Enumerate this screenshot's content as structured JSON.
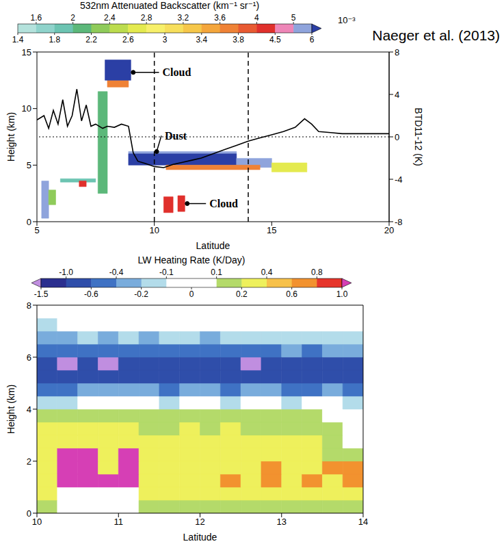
{
  "chart_data": [
    {
      "type": "heatmap",
      "subtitle": "Naeger et al. (2013)",
      "xlabel": "Latitude",
      "ylabel": "Height (km)",
      "y2label": "BTD11-12 (K)",
      "xlim": [
        5,
        20
      ],
      "xticks": [
        5,
        10,
        15,
        20
      ],
      "ylim": [
        0,
        15
      ],
      "yticks": [
        0,
        5,
        10,
        15
      ],
      "y2lim": [
        -8,
        8
      ],
      "y2ticks": [
        -8,
        -4,
        0,
        4,
        8
      ],
      "colorbar": {
        "title": "532nm Attenuated Backscatter (km⁻¹ sr⁻¹)",
        "scale_label": "10⁻³",
        "range": [
          1.4,
          6
        ],
        "ticks": [
          1.4,
          1.6,
          1.8,
          2,
          2.2,
          2.4,
          2.6,
          2.8,
          3,
          3.2,
          3.4,
          3.6,
          3.8,
          4,
          4.5,
          5,
          6
        ]
      },
      "cells": [
        {
          "x": [
            5.2,
            5.5
          ],
          "y": [
            0.3,
            3.6
          ],
          "value": 5.5
        },
        {
          "x": [
            5.5,
            5.8
          ],
          "y": [
            1.5,
            2.8
          ],
          "value": 2.2
        },
        {
          "x": [
            6.0,
            7.5
          ],
          "y": [
            3.5,
            3.8
          ],
          "value": 1.9
        },
        {
          "x": [
            6.8,
            7.1
          ],
          "y": [
            3.1,
            3.6
          ],
          "value": 4.2
        },
        {
          "x": [
            7.6,
            8.0
          ],
          "y": [
            2.5,
            11.5
          ],
          "value": 2.0
        },
        {
          "x": [
            8.0,
            8.9
          ],
          "y": [
            11.9,
            12.5
          ],
          "value": 3.6
        },
        {
          "x": [
            7.9,
            9.0
          ],
          "y": [
            12.5,
            14.3
          ],
          "value": 6.5
        },
        {
          "x": [
            8.9,
            13.5
          ],
          "y": [
            6.0,
            6.2
          ],
          "value": 5.5
        },
        {
          "x": [
            8.9,
            13.5
          ],
          "y": [
            5.0,
            6.0
          ],
          "value": 6.5
        },
        {
          "x": [
            13.5,
            15.0
          ],
          "y": [
            4.8,
            5.6
          ],
          "value": 5.5
        },
        {
          "x": [
            15.0,
            16.5
          ],
          "y": [
            4.4,
            5.2
          ],
          "value": 2.6
        },
        {
          "x": [
            10.5,
            14.5
          ],
          "y": [
            4.6,
            5.0
          ],
          "value": 3.7
        },
        {
          "x": [
            10.4,
            10.8
          ],
          "y": [
            0.8,
            2.2
          ],
          "value": 4.2
        },
        {
          "x": [
            11.0,
            11.3
          ],
          "y": [
            0.9,
            2.3
          ],
          "value": 4.2
        }
      ],
      "series": [
        {
          "type": "line",
          "axis": "y2",
          "color": "#000000",
          "x": [
            5.0,
            5.3,
            5.5,
            5.7,
            5.9,
            6.1,
            6.3,
            6.5,
            6.7,
            6.9,
            7.1,
            7.3,
            7.5,
            7.8,
            8.0,
            8.3,
            8.6,
            8.9,
            9.1,
            9.3,
            9.6,
            10.0,
            10.4,
            10.8,
            11.2,
            11.6,
            12.0,
            12.5,
            13.0,
            13.5,
            14.0,
            14.5,
            15.0,
            15.5,
            16.0,
            16.4,
            16.7,
            17.0,
            17.5,
            18.0,
            19.0,
            20.0
          ],
          "values": [
            1.6,
            2.0,
            0.8,
            2.5,
            1.2,
            3.5,
            1.0,
            2.0,
            4.5,
            1.5,
            3.0,
            1.0,
            1.2,
            0.8,
            1.0,
            0.9,
            1.2,
            1.0,
            -1.5,
            -2.3,
            -2.5,
            -2.8,
            -2.9,
            -2.6,
            -2.4,
            -2.2,
            -2.0,
            -1.6,
            -1.2,
            -0.8,
            -0.4,
            -0.1,
            0.2,
            0.5,
            0.9,
            1.7,
            1.2,
            0.5,
            0.4,
            0.3,
            0.3,
            0.3
          ]
        }
      ],
      "reference_x": [
        10,
        14
      ],
      "reference_y2": [
        0
      ],
      "annotations": [
        {
          "text": "Cloud",
          "x": 10.2,
          "y": 13.2,
          "arrow_to": [
            9.1,
            13.2
          ]
        },
        {
          "text": "Dust",
          "x": 10.3,
          "y": 7.6,
          "arrow_to": [
            10.1,
            6.2
          ]
        },
        {
          "text": "Cloud",
          "x": 12.2,
          "y": 1.6,
          "arrow_to": [
            11.4,
            1.6
          ]
        }
      ]
    },
    {
      "type": "heatmap",
      "xlabel": "Latitude",
      "ylabel": "Height (km)",
      "xlim": [
        10,
        14
      ],
      "xticks": [
        10,
        11,
        12,
        13,
        14
      ],
      "ylim": [
        0,
        8
      ],
      "yticks": [
        0,
        2,
        4,
        6,
        8
      ],
      "colorbar": {
        "title": "LW Heating Rate (K/Day)",
        "range": [
          -1.5,
          1
        ],
        "ticks": [
          -1.5,
          {
            "value": -1,
            "label": "-1.0"
          },
          -0.6,
          -0.4,
          -0.2,
          -0.1,
          0,
          0.1,
          0.2,
          0.4,
          0.6,
          0.8,
          {
            "value": 1,
            "label": "1.0"
          }
        ]
      },
      "cells": {
        "x_edges": [
          10,
          10.25,
          10.5,
          10.75,
          11,
          11.25,
          11.5,
          11.75,
          12,
          12.25,
          12.5,
          12.75,
          13,
          13.25,
          13.5,
          13.75,
          14
        ],
        "y_edges": [
          0,
          0.5,
          1,
          1.5,
          2,
          2.5,
          3,
          3.5,
          4,
          4.5,
          5,
          5.5,
          6,
          6.5,
          7,
          7.5,
          8
        ],
        "z": [
          [
            0.15,
            0.05,
            0.05,
            0.05,
            0.05,
            0.15,
            0.15,
            0.15,
            0.15,
            0.15,
            0.15,
            0.15,
            0.15,
            0.15,
            0.15,
            0.15
          ],
          [
            0.3,
            0.05,
            0.05,
            0.05,
            0.05,
            0.3,
            0.3,
            0.3,
            0.3,
            0.3,
            0.3,
            0.3,
            0.3,
            0.3,
            0.3,
            0.3
          ],
          [
            0.3,
            1.2,
            1.2,
            1.2,
            1.2,
            0.3,
            0.3,
            0.3,
            0.3,
            0.65,
            0.3,
            0.65,
            0.3,
            0.65,
            0.3,
            0.65
          ],
          [
            0.3,
            1.2,
            1.2,
            0.3,
            1.2,
            0.3,
            0.3,
            0.3,
            0.3,
            0.3,
            0.3,
            0.65,
            0.3,
            0.3,
            0.65,
            0.65
          ],
          [
            0.3,
            1.2,
            1.2,
            0.3,
            1.2,
            0.3,
            0.3,
            0.3,
            0.3,
            0.3,
            0.3,
            0.3,
            0.3,
            0.3,
            0.15,
            0.15
          ],
          [
            0.3,
            0.3,
            0.3,
            0.3,
            0.3,
            0.3,
            0.3,
            0.3,
            0.25,
            0.3,
            0.25,
            0.3,
            0.25,
            0.25,
            0.15,
            0.05
          ],
          [
            0.25,
            0.25,
            0.3,
            0.25,
            0.25,
            0.15,
            0.15,
            0.25,
            0.15,
            0.25,
            0.15,
            0.15,
            0.15,
            0.15,
            0.15,
            0.05
          ],
          [
            0.15,
            0.15,
            0.15,
            0.15,
            0.15,
            0.15,
            0.15,
            0.15,
            0.15,
            0.15,
            0.15,
            0.15,
            0.15,
            0.15,
            0.05,
            0.05
          ],
          [
            -0.15,
            -0.15,
            -0.05,
            -0.05,
            -0.05,
            -0.05,
            -0.15,
            -0.05,
            -0.05,
            -0.15,
            -0.05,
            -0.05,
            -0.15,
            -0.05,
            -0.05,
            -0.15
          ],
          [
            -0.5,
            -0.5,
            -0.3,
            -0.3,
            -0.3,
            -0.3,
            -0.5,
            -0.3,
            -0.3,
            -0.5,
            -0.3,
            -0.3,
            -0.5,
            -0.5,
            -0.3,
            -0.5
          ],
          [
            -0.8,
            -0.8,
            -0.8,
            -0.8,
            -0.7,
            -0.7,
            -0.8,
            -0.8,
            -0.7,
            -0.8,
            -0.7,
            -0.8,
            -0.8,
            -0.8,
            -0.7,
            -0.8
          ],
          [
            -0.8,
            -1.6,
            -0.8,
            -1.6,
            -0.8,
            -0.8,
            -0.8,
            -0.8,
            -0.8,
            -0.8,
            -1.6,
            -0.8,
            -0.8,
            -0.8,
            -0.8,
            -0.8
          ],
          [
            -0.5,
            -0.5,
            -0.5,
            -0.5,
            -0.5,
            -0.5,
            -0.5,
            -0.5,
            -0.5,
            -0.5,
            -0.5,
            -0.5,
            -0.3,
            -0.5,
            -0.3,
            -0.3
          ],
          [
            -0.3,
            -0.3,
            -0.15,
            -0.3,
            -0.15,
            -0.3,
            -0.15,
            -0.15,
            -0.3,
            -0.15,
            -0.15,
            -0.15,
            -0.15,
            -0.15,
            -0.15,
            -0.15
          ],
          [
            -0.15,
            -0.05,
            -0.05,
            -0.05,
            -0.05,
            -0.05,
            -0.05,
            -0.05,
            -0.05,
            -0.05,
            -0.05,
            -0.05,
            -0.05,
            -0.05,
            -0.05,
            -0.05
          ],
          [
            0,
            0,
            0,
            0,
            0,
            0,
            0,
            0,
            0,
            0,
            0,
            0,
            0,
            0,
            0,
            0
          ]
        ]
      }
    }
  ]
}
